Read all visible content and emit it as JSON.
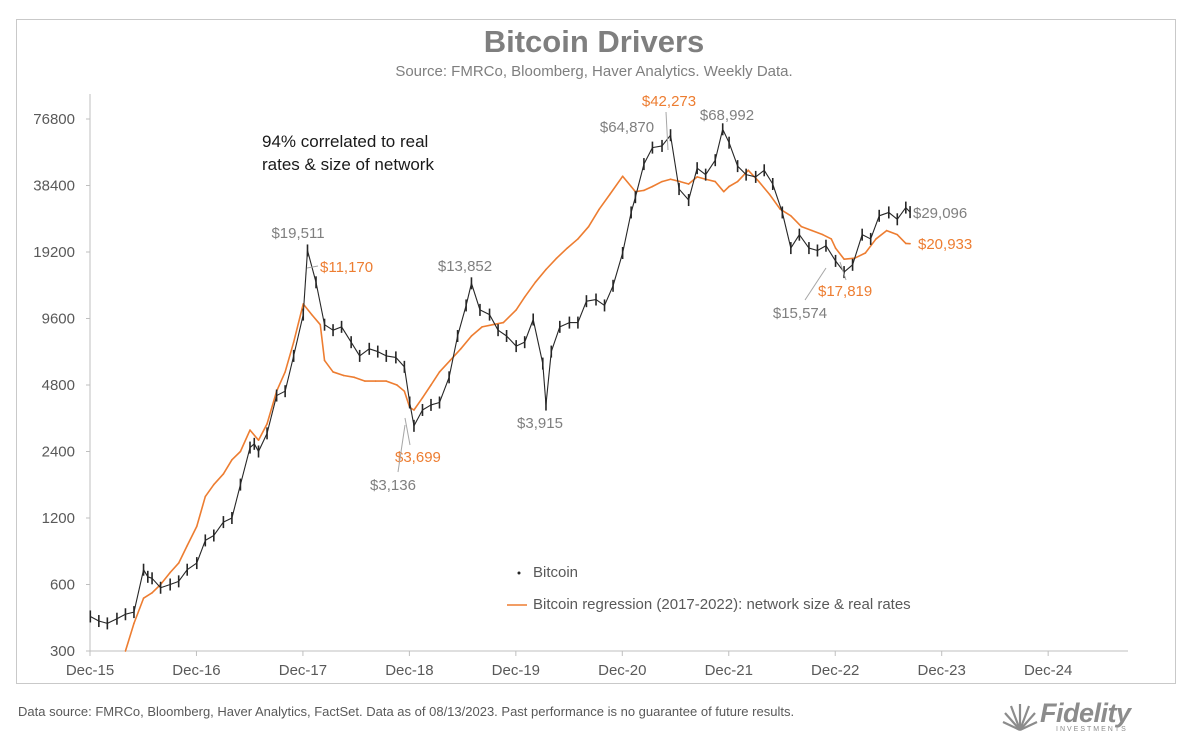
{
  "title": "Bitcoin Drivers",
  "subtitle": "Source: FMRCo, Bloomberg, Haver Analytics. Weekly Data.",
  "note": [
    "94% correlated to real",
    "rates & size of network"
  ],
  "footer": "Data source: FMRCo, Bloomberg, Haver Analytics, FactSet. Data as of 08/13/2023. Past performance is no guarantee of future results.",
  "logo": {
    "name": "Fidelity",
    "sub": "INVESTMENTS"
  },
  "colors": {
    "bitcoin": "#262626",
    "regression": "#ed7d31",
    "axis": "#bfbfbf",
    "label_gray": "#7f7f7f",
    "label_orange": "#ed7d31"
  },
  "chart_data": {
    "type": "line",
    "title": "Bitcoin Drivers",
    "yscale": "log2",
    "ylim": [
      300,
      76800
    ],
    "yticks": [
      300,
      600,
      1200,
      2400,
      4800,
      9600,
      19200,
      38400,
      76800
    ],
    "ytick_labels": [
      "300",
      "600",
      "1200",
      "2400",
      "4800",
      "9600",
      "19200",
      "38400",
      "76800"
    ],
    "xlim": [
      2015.917,
      2025.667
    ],
    "xticks": [
      2015.917,
      2016.917,
      2017.917,
      2018.917,
      2019.917,
      2020.917,
      2021.917,
      2022.917,
      2023.917,
      2024.917
    ],
    "xtick_labels": [
      "Dec-15",
      "Dec-16",
      "Dec-17",
      "Dec-18",
      "Dec-19",
      "Dec-20",
      "Dec-21",
      "Dec-22",
      "Dec-23",
      "Dec-24"
    ],
    "legend": [
      {
        "name": "Bitcoin",
        "style": "markers"
      },
      {
        "name": "Bitcoin regression (2017-2022): network size & real rates",
        "style": "line"
      }
    ],
    "series": [
      {
        "name": "Bitcoin",
        "x": [
          2015.92,
          2016.0,
          2016.08,
          2016.17,
          2016.25,
          2016.33,
          2016.42,
          2016.46,
          2016.5,
          2016.58,
          2016.67,
          2016.75,
          2016.83,
          2016.92,
          2017.0,
          2017.08,
          2017.17,
          2017.25,
          2017.33,
          2017.42,
          2017.46,
          2017.5,
          2017.58,
          2017.67,
          2017.75,
          2017.83,
          2017.92,
          2017.96,
          2018.04,
          2018.12,
          2018.2,
          2018.28,
          2018.37,
          2018.45,
          2018.54,
          2018.62,
          2018.7,
          2018.79,
          2018.87,
          2018.92,
          2018.96,
          2019.04,
          2019.12,
          2019.2,
          2019.29,
          2019.37,
          2019.45,
          2019.5,
          2019.58,
          2019.67,
          2019.75,
          2019.83,
          2019.92,
          2020.0,
          2020.08,
          2020.17,
          2020.2,
          2020.25,
          2020.33,
          2020.42,
          2020.5,
          2020.58,
          2020.67,
          2020.75,
          2020.83,
          2020.92,
          2021.0,
          2021.04,
          2021.12,
          2021.2,
          2021.29,
          2021.37,
          2021.45,
          2021.54,
          2021.62,
          2021.7,
          2021.79,
          2021.86,
          2021.92,
          2022.0,
          2022.08,
          2022.17,
          2022.25,
          2022.33,
          2022.42,
          2022.5,
          2022.58,
          2022.67,
          2022.75,
          2022.83,
          2022.92,
          2023.0,
          2023.08,
          2023.17,
          2023.25,
          2023.33,
          2023.42,
          2023.5,
          2023.58,
          2023.62
        ],
        "values": [
          430,
          410,
          400,
          420,
          440,
          450,
          700,
          650,
          640,
          580,
          600,
          620,
          700,
          750,
          950,
          1000,
          1150,
          1200,
          1700,
          2500,
          2600,
          2400,
          2900,
          4300,
          4500,
          6500,
          10000,
          19511,
          14000,
          9000,
          8500,
          8800,
          7500,
          6500,
          7000,
          6800,
          6500,
          6400,
          5800,
          4000,
          3136,
          3700,
          3900,
          4000,
          5200,
          8000,
          11000,
          13852,
          10500,
          10000,
          8500,
          8000,
          7200,
          7500,
          9500,
          6000,
          3915,
          6800,
          8800,
          9200,
          9200,
          11500,
          11700,
          11000,
          13500,
          19000,
          29000,
          34000,
          48000,
          57000,
          58000,
          64870,
          37000,
          33000,
          46000,
          43000,
          50000,
          68992,
          60000,
          47000,
          43000,
          42000,
          45000,
          39000,
          29000,
          20000,
          23000,
          20000,
          19500,
          20500,
          17500,
          15574,
          16800,
          23000,
          22000,
          28000,
          29000,
          27000,
          30500,
          29096
        ]
      },
      {
        "name": "Bitcoin regression (2017-2022): network size & real rates",
        "x": [
          2016.25,
          2016.33,
          2016.42,
          2016.5,
          2016.58,
          2016.67,
          2016.75,
          2016.83,
          2016.92,
          2017.0,
          2017.08,
          2017.17,
          2017.25,
          2017.33,
          2017.42,
          2017.5,
          2017.58,
          2017.67,
          2017.75,
          2017.83,
          2017.92,
          2018.0,
          2018.08,
          2018.12,
          2018.2,
          2018.3,
          2018.4,
          2018.5,
          2018.6,
          2018.7,
          2018.8,
          2018.87,
          2018.92,
          2018.96,
          2019.04,
          2019.12,
          2019.2,
          2019.3,
          2019.4,
          2019.5,
          2019.6,
          2019.7,
          2019.8,
          2019.92,
          2020.0,
          2020.1,
          2020.2,
          2020.3,
          2020.4,
          2020.5,
          2020.6,
          2020.7,
          2020.8,
          2020.92,
          2021.0,
          2021.04,
          2021.12,
          2021.2,
          2021.29,
          2021.37,
          2021.46,
          2021.54,
          2021.62,
          2021.7,
          2021.79,
          2021.87,
          2021.92,
          2022.0,
          2022.1,
          2022.2,
          2022.3,
          2022.4,
          2022.5,
          2022.6,
          2022.7,
          2022.8,
          2022.88,
          2022.92,
          2023.0,
          2023.1,
          2023.2,
          2023.3,
          2023.4,
          2023.5,
          2023.58,
          2023.62
        ],
        "values": [
          300,
          400,
          520,
          550,
          600,
          680,
          750,
          900,
          1100,
          1500,
          1700,
          1900,
          2200,
          2400,
          3000,
          2700,
          3200,
          4500,
          5500,
          7500,
          11170,
          10000,
          9000,
          6200,
          5500,
          5300,
          5200,
          5000,
          5000,
          5000,
          4800,
          4500,
          3800,
          3699,
          4200,
          4800,
          5500,
          6200,
          7000,
          8000,
          8800,
          9000,
          9200,
          10500,
          12000,
          14000,
          16000,
          18000,
          20000,
          22000,
          25000,
          30000,
          35000,
          42273,
          38000,
          36000,
          36500,
          38000,
          40000,
          41000,
          40000,
          39000,
          42000,
          41000,
          40000,
          36000,
          38000,
          40000,
          45000,
          40000,
          35000,
          30000,
          28000,
          25000,
          24000,
          23000,
          22000,
          20000,
          17819,
          18000,
          19000,
          22000,
          24000,
          23000,
          21000,
          20933
        ]
      }
    ],
    "annotations": [
      {
        "text": "$19,511",
        "x": 2017.96,
        "y": 19511,
        "color": "gray"
      },
      {
        "text": "$11,170",
        "x": 2017.92,
        "y": 11170,
        "color": "orange"
      },
      {
        "text": "$13,852",
        "x": 2019.5,
        "y": 13852,
        "color": "gray"
      },
      {
        "text": "$3,699",
        "x": 2018.96,
        "y": 3699,
        "color": "orange"
      },
      {
        "text": "$3,136",
        "x": 2018.96,
        "y": 3136,
        "color": "gray"
      },
      {
        "text": "$3,915",
        "x": 2020.2,
        "y": 3915,
        "color": "gray"
      },
      {
        "text": "$64,870",
        "x": 2021.37,
        "y": 64870,
        "color": "gray"
      },
      {
        "text": "$42,273",
        "x": 2020.92,
        "y": 42273,
        "color": "orange"
      },
      {
        "text": "$68,992",
        "x": 2021.86,
        "y": 68992,
        "color": "gray"
      },
      {
        "text": "$29,096",
        "x": 2023.62,
        "y": 29096,
        "color": "gray"
      },
      {
        "text": "$20,933",
        "x": 2023.62,
        "y": 20933,
        "color": "orange"
      },
      {
        "text": "$17,819",
        "x": 2023.0,
        "y": 17819,
        "color": "orange"
      },
      {
        "text": "$15,574",
        "x": 2022.92,
        "y": 15574,
        "color": "gray"
      }
    ]
  }
}
